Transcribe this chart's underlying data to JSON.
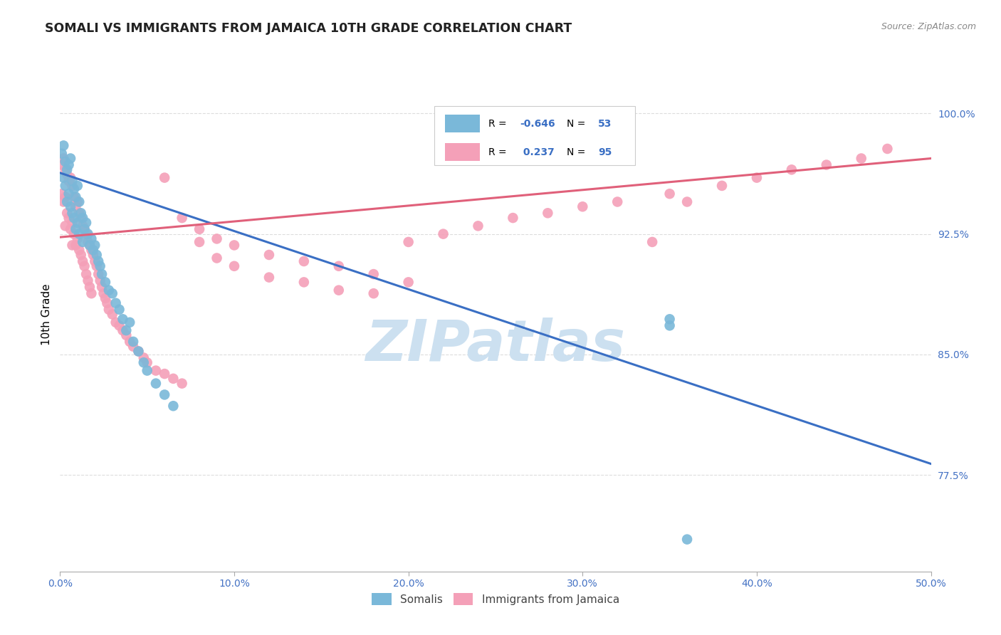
{
  "title": "SOMALI VS IMMIGRANTS FROM JAMAICA 10TH GRADE CORRELATION CHART",
  "source_text": "Source: ZipAtlas.com",
  "ylabel": "10th Grade",
  "xlim": [
    0.0,
    0.5
  ],
  "ylim": [
    0.715,
    1.035
  ],
  "yticks": [
    0.775,
    0.85,
    0.925,
    1.0
  ],
  "ytick_labels": [
    "77.5%",
    "85.0%",
    "92.5%",
    "100.0%"
  ],
  "xticks": [
    0.0,
    0.1,
    0.2,
    0.3,
    0.4,
    0.5
  ],
  "xtick_labels": [
    "0.0%",
    "10.0%",
    "20.0%",
    "30.0%",
    "40.0%",
    "50.0%"
  ],
  "blue_R": -0.646,
  "blue_N": 53,
  "pink_R": 0.237,
  "pink_N": 95,
  "blue_color": "#7ab8d9",
  "pink_color": "#f4a0b8",
  "blue_line_color": "#3a6fc4",
  "pink_line_color": "#e0607a",
  "blue_scatter_x": [
    0.001,
    0.002,
    0.002,
    0.003,
    0.003,
    0.004,
    0.004,
    0.005,
    0.005,
    0.006,
    0.006,
    0.007,
    0.007,
    0.008,
    0.008,
    0.009,
    0.009,
    0.01,
    0.01,
    0.011,
    0.011,
    0.012,
    0.013,
    0.013,
    0.014,
    0.015,
    0.016,
    0.017,
    0.018,
    0.019,
    0.02,
    0.021,
    0.022,
    0.023,
    0.024,
    0.026,
    0.028,
    0.03,
    0.032,
    0.034,
    0.036,
    0.038,
    0.04,
    0.042,
    0.045,
    0.048,
    0.05,
    0.055,
    0.06,
    0.065,
    0.35,
    0.35,
    0.36
  ],
  "blue_scatter_y": [
    0.975,
    0.98,
    0.96,
    0.97,
    0.955,
    0.965,
    0.945,
    0.968,
    0.95,
    0.972,
    0.942,
    0.958,
    0.938,
    0.953,
    0.935,
    0.948,
    0.928,
    0.955,
    0.932,
    0.945,
    0.925,
    0.938,
    0.935,
    0.92,
    0.928,
    0.932,
    0.925,
    0.918,
    0.922,
    0.915,
    0.918,
    0.912,
    0.908,
    0.905,
    0.9,
    0.895,
    0.89,
    0.888,
    0.882,
    0.878,
    0.872,
    0.865,
    0.87,
    0.858,
    0.852,
    0.845,
    0.84,
    0.832,
    0.825,
    0.818,
    0.872,
    0.868,
    0.735
  ],
  "pink_scatter_x": [
    0.001,
    0.001,
    0.002,
    0.002,
    0.003,
    0.003,
    0.003,
    0.004,
    0.004,
    0.005,
    0.005,
    0.006,
    0.006,
    0.007,
    0.007,
    0.007,
    0.008,
    0.008,
    0.009,
    0.009,
    0.01,
    0.01,
    0.011,
    0.011,
    0.012,
    0.012,
    0.013,
    0.013,
    0.014,
    0.014,
    0.015,
    0.015,
    0.016,
    0.016,
    0.017,
    0.017,
    0.018,
    0.018,
    0.019,
    0.02,
    0.021,
    0.022,
    0.023,
    0.024,
    0.025,
    0.026,
    0.027,
    0.028,
    0.03,
    0.032,
    0.034,
    0.036,
    0.038,
    0.04,
    0.042,
    0.045,
    0.048,
    0.05,
    0.055,
    0.06,
    0.065,
    0.07,
    0.08,
    0.09,
    0.1,
    0.12,
    0.14,
    0.16,
    0.18,
    0.2,
    0.06,
    0.07,
    0.08,
    0.09,
    0.1,
    0.12,
    0.14,
    0.16,
    0.18,
    0.2,
    0.22,
    0.24,
    0.26,
    0.28,
    0.3,
    0.32,
    0.35,
    0.38,
    0.4,
    0.42,
    0.44,
    0.46,
    0.475,
    0.36,
    0.34
  ],
  "pink_scatter_y": [
    0.968,
    0.95,
    0.972,
    0.945,
    0.965,
    0.948,
    0.93,
    0.962,
    0.938,
    0.958,
    0.935,
    0.96,
    0.928,
    0.955,
    0.932,
    0.918,
    0.948,
    0.925,
    0.942,
    0.918,
    0.945,
    0.922,
    0.938,
    0.915,
    0.935,
    0.912,
    0.93,
    0.908,
    0.928,
    0.905,
    0.925,
    0.9,
    0.92,
    0.896,
    0.918,
    0.892,
    0.915,
    0.888,
    0.912,
    0.908,
    0.905,
    0.9,
    0.896,
    0.892,
    0.888,
    0.885,
    0.882,
    0.878,
    0.875,
    0.87,
    0.868,
    0.865,
    0.862,
    0.858,
    0.855,
    0.852,
    0.848,
    0.845,
    0.84,
    0.838,
    0.835,
    0.832,
    0.928,
    0.922,
    0.918,
    0.912,
    0.908,
    0.905,
    0.9,
    0.895,
    0.96,
    0.935,
    0.92,
    0.91,
    0.905,
    0.898,
    0.895,
    0.89,
    0.888,
    0.92,
    0.925,
    0.93,
    0.935,
    0.938,
    0.942,
    0.945,
    0.95,
    0.955,
    0.96,
    0.965,
    0.968,
    0.972,
    0.978,
    0.945,
    0.92
  ],
  "blue_line_x0": 0.0,
  "blue_line_x1": 0.5,
  "blue_line_y0": 0.963,
  "blue_line_y1": 0.782,
  "pink_line_x0": 0.0,
  "pink_line_x1": 0.5,
  "pink_line_y0": 0.923,
  "pink_line_y1": 0.972,
  "watermark": "ZIPatlas",
  "watermark_color": "#cce0f0",
  "background_color": "#ffffff",
  "grid_color": "#dddddd",
  "tick_color": "#4472c4",
  "title_color": "#222222",
  "source_color": "#888888",
  "title_fontsize": 12.5,
  "label_fontsize": 11,
  "tick_fontsize": 10,
  "legend_fontsize": 10,
  "scatter_size": 110
}
